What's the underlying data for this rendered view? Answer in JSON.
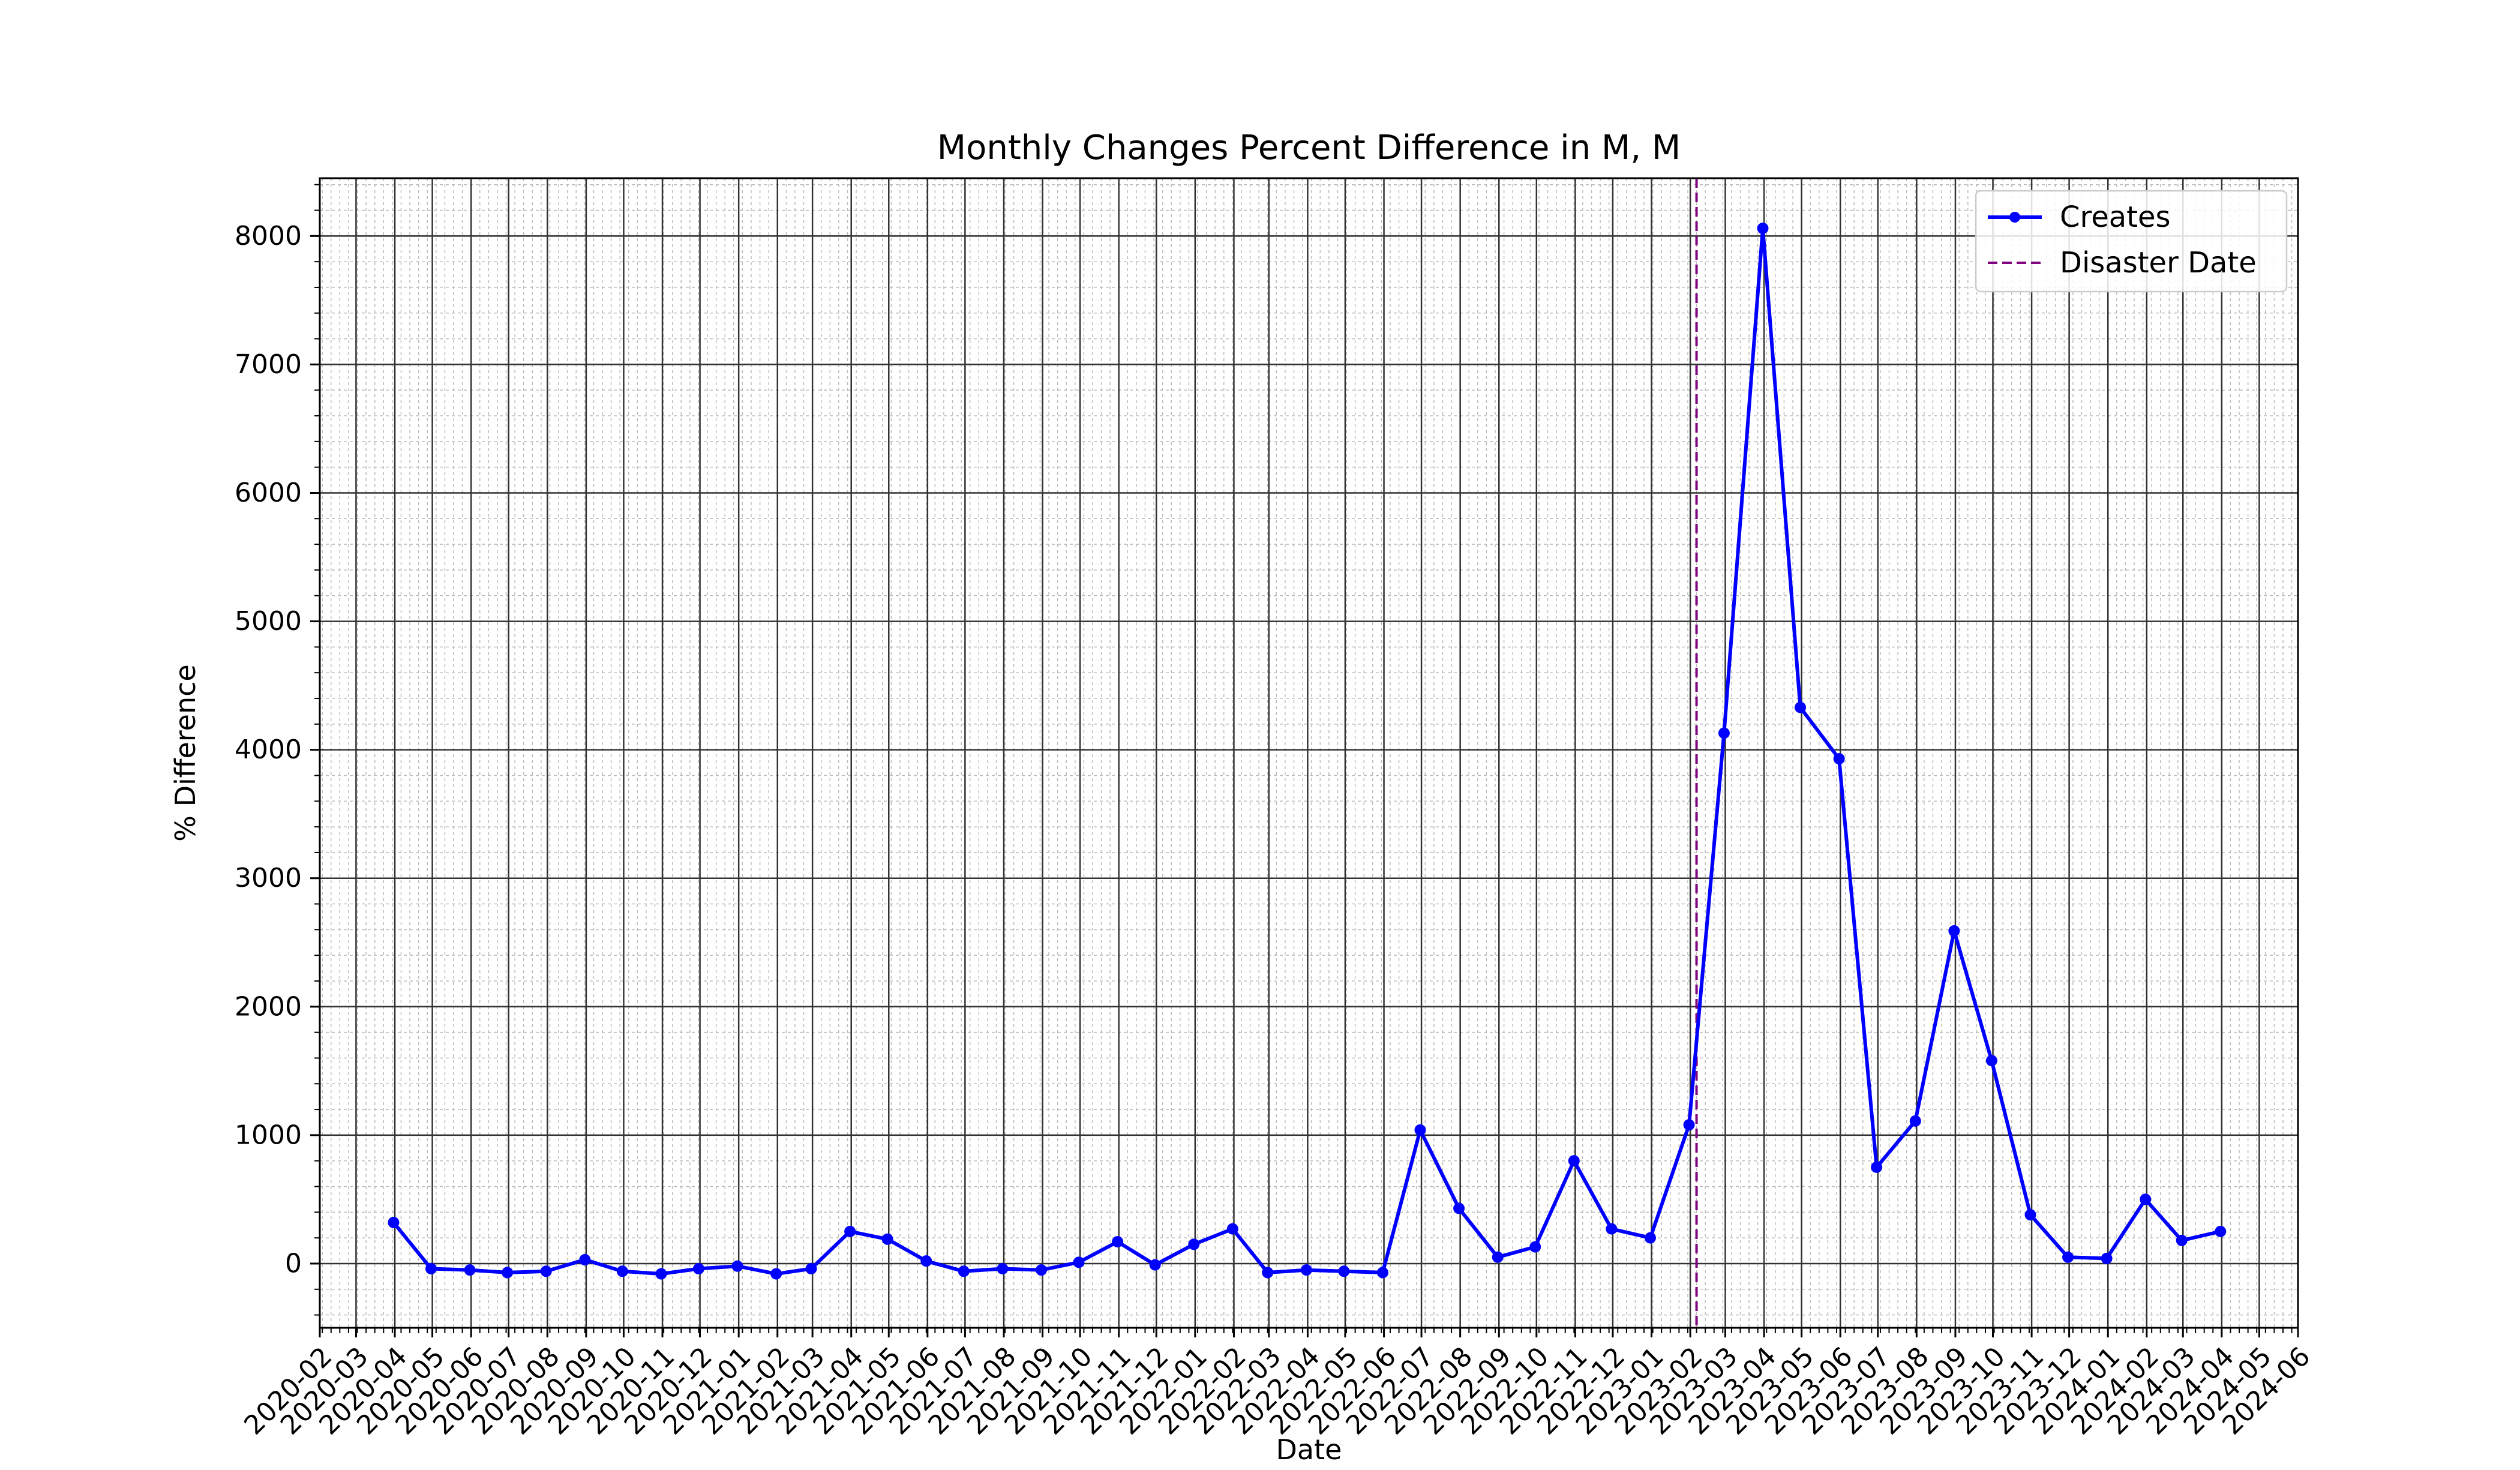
{
  "chart_data": {
    "type": "line",
    "title": "Monthly Changes Percent Difference in M, M",
    "xlabel": "Date",
    "ylabel": "% Difference",
    "xlim": [
      "2020-02-01",
      "2024-06-01"
    ],
    "ylim": [
      -500,
      8450
    ],
    "yticks": [
      0,
      1000,
      2000,
      3000,
      4000,
      5000,
      6000,
      7000,
      8000
    ],
    "xticks": [
      "2020-02",
      "2020-03",
      "2020-04",
      "2020-05",
      "2020-06",
      "2020-07",
      "2020-08",
      "2020-09",
      "2020-10",
      "2020-11",
      "2020-12",
      "2021-01",
      "2021-02",
      "2021-03",
      "2021-04",
      "2021-05",
      "2021-06",
      "2021-07",
      "2021-08",
      "2021-09",
      "2021-10",
      "2021-11",
      "2021-12",
      "2022-01",
      "2022-02",
      "2022-03",
      "2022-04",
      "2022-05",
      "2022-06",
      "2022-07",
      "2022-08",
      "2022-09",
      "2022-10",
      "2022-11",
      "2022-12",
      "2023-01",
      "2023-02",
      "2023-03",
      "2023-04",
      "2023-05",
      "2023-06",
      "2023-07",
      "2023-08",
      "2023-09",
      "2023-10",
      "2023-11",
      "2023-12",
      "2024-01",
      "2024-02",
      "2024-03",
      "2024-04",
      "2024-05",
      "2024-06"
    ],
    "grid": true,
    "legend_position": "upper right",
    "series": [
      {
        "name": "Creates",
        "color": "#0000ff",
        "style": "solid-line-with-markers",
        "x": [
          "2020-03-31",
          "2020-04-30",
          "2020-05-31",
          "2020-06-30",
          "2020-07-31",
          "2020-08-31",
          "2020-09-30",
          "2020-10-31",
          "2020-11-30",
          "2020-12-31",
          "2021-01-31",
          "2021-02-28",
          "2021-03-31",
          "2021-04-30",
          "2021-05-31",
          "2021-06-30",
          "2021-07-31",
          "2021-08-31",
          "2021-09-30",
          "2021-10-31",
          "2021-11-30",
          "2021-12-31",
          "2022-01-31",
          "2022-02-28",
          "2022-03-31",
          "2022-04-30",
          "2022-05-31",
          "2022-06-30",
          "2022-07-31",
          "2022-08-31",
          "2022-09-30",
          "2022-10-31",
          "2022-11-30",
          "2022-12-31",
          "2023-01-31",
          "2023-02-28",
          "2023-03-31",
          "2023-04-30",
          "2023-05-31",
          "2023-06-30",
          "2023-07-31",
          "2023-08-31",
          "2023-09-30",
          "2023-10-31",
          "2023-11-30",
          "2023-12-31",
          "2024-01-31",
          "2024-02-29",
          "2024-03-31"
        ],
        "values": [
          320,
          -40,
          -50,
          -70,
          -60,
          30,
          -60,
          -80,
          -40,
          -20,
          -80,
          -40,
          250,
          190,
          20,
          -60,
          -40,
          -50,
          10,
          170,
          -10,
          150,
          270,
          -70,
          -50,
          -60,
          -70,
          1040,
          430,
          50,
          130,
          800,
          270,
          200,
          1080,
          4130,
          8060,
          4330,
          3930,
          750,
          1110,
          2590,
          1580,
          380,
          50,
          40,
          500,
          180,
          250
        ]
      },
      {
        "name": "Disaster Date",
        "color": "#800080",
        "style": "dashed-vertical-line",
        "x": [
          "2023-02-06"
        ]
      }
    ]
  }
}
